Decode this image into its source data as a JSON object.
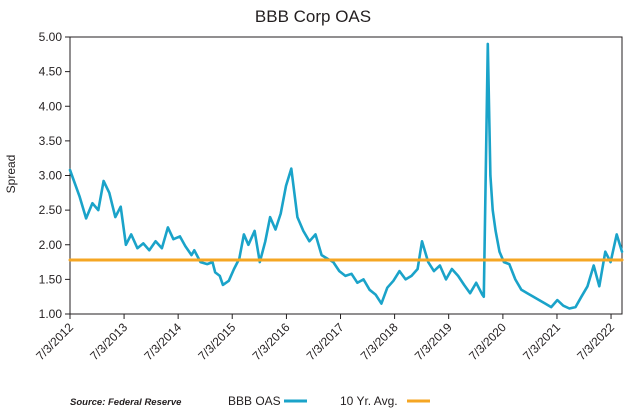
{
  "chart_data": {
    "type": "line",
    "title": "BBB Corp OAS",
    "ylabel": "Spread",
    "xlabel": "",
    "ylim": [
      1.0,
      5.0
    ],
    "yticks": [
      "1.00",
      "1.50",
      "2.00",
      "2.50",
      "3.00",
      "3.50",
      "4.00",
      "4.50",
      "5.00"
    ],
    "xticks": [
      "7/3/2012",
      "7/3/2013",
      "7/3/2014",
      "7/3/2015",
      "7/3/2016",
      "7/3/2017",
      "7/3/2018",
      "7/3/2019",
      "7/3/2020",
      "7/3/2021",
      "7/3/2022"
    ],
    "xlim": [
      "2012-07-03",
      "2022-09-15"
    ],
    "grid": false,
    "legend_position": "bottom",
    "source": "Source: Federal Reserve",
    "series": [
      {
        "name": "BBB OAS",
        "color": "#1aa3c9",
        "x": [
          "2012-07-03",
          "2012-09-05",
          "2012-10-20",
          "2012-12-01",
          "2013-01-10",
          "2013-02-15",
          "2013-03-25",
          "2013-05-05",
          "2013-06-10",
          "2013-07-15",
          "2013-08-20",
          "2013-10-01",
          "2013-11-10",
          "2013-12-20",
          "2014-02-01",
          "2014-03-15",
          "2014-04-25",
          "2014-06-01",
          "2014-07-15",
          "2014-08-20",
          "2014-10-01",
          "2014-10-20",
          "2014-12-01",
          "2015-01-15",
          "2015-02-20",
          "2015-03-10",
          "2015-04-10",
          "2015-05-01",
          "2015-06-10",
          "2015-07-15",
          "2015-08-20",
          "2015-09-20",
          "2015-10-20",
          "2015-12-01",
          "2016-01-05",
          "2016-02-11",
          "2016-03-15",
          "2016-04-20",
          "2016-05-25",
          "2016-06-30",
          "2016-08-05",
          "2016-09-15",
          "2016-10-25",
          "2016-12-05",
          "2017-01-15",
          "2017-02-25",
          "2017-04-05",
          "2017-05-15",
          "2017-06-25",
          "2017-08-05",
          "2017-09-15",
          "2017-10-25",
          "2017-12-05",
          "2018-01-15",
          "2018-02-25",
          "2018-04-05",
          "2018-05-15",
          "2018-06-25",
          "2018-08-05",
          "2018-09-15",
          "2018-10-25",
          "2018-12-05",
          "2019-01-04",
          "2019-02-15",
          "2019-03-25",
          "2019-05-05",
          "2019-06-15",
          "2019-07-25",
          "2019-09-05",
          "2019-10-15",
          "2019-11-25",
          "2020-01-05",
          "2020-02-15",
          "2020-02-25",
          "2020-03-23",
          "2020-04-10",
          "2020-04-25",
          "2020-05-15",
          "2020-06-10",
          "2020-07-10",
          "2020-08-15",
          "2020-09-25",
          "2020-11-05",
          "2020-12-15",
          "2021-01-25",
          "2021-03-05",
          "2021-04-15",
          "2021-05-25",
          "2021-07-05",
          "2021-08-15",
          "2021-09-25",
          "2021-11-05",
          "2021-12-15",
          "2022-01-25",
          "2022-03-08",
          "2022-04-15",
          "2022-05-25",
          "2022-06-30",
          "2022-08-10",
          "2022-09-15"
        ],
        "values": [
          3.08,
          2.7,
          2.38,
          2.6,
          2.5,
          2.92,
          2.75,
          2.4,
          2.55,
          2.0,
          2.15,
          1.95,
          2.02,
          1.92,
          2.05,
          1.95,
          2.25,
          2.08,
          2.12,
          1.98,
          1.85,
          1.92,
          1.75,
          1.72,
          1.75,
          1.6,
          1.55,
          1.42,
          1.48,
          1.65,
          1.8,
          2.15,
          2.0,
          2.2,
          1.75,
          2.05,
          2.4,
          2.22,
          2.45,
          2.85,
          3.1,
          2.4,
          2.2,
          2.05,
          2.15,
          1.85,
          1.8,
          1.75,
          1.62,
          1.55,
          1.58,
          1.45,
          1.5,
          1.35,
          1.28,
          1.15,
          1.38,
          1.48,
          1.62,
          1.5,
          1.55,
          1.65,
          2.05,
          1.75,
          1.62,
          1.7,
          1.5,
          1.65,
          1.55,
          1.42,
          1.3,
          1.45,
          1.28,
          1.25,
          4.9,
          3.0,
          2.5,
          2.2,
          1.9,
          1.75,
          1.72,
          1.5,
          1.35,
          1.3,
          1.25,
          1.2,
          1.15,
          1.1,
          1.2,
          1.12,
          1.08,
          1.1,
          1.25,
          1.4,
          1.7,
          1.4,
          1.9,
          1.75,
          2.15,
          1.9
        ]
      },
      {
        "name": "10 Yr. Avg.",
        "color": "#f5a623",
        "x": [
          "2012-07-03",
          "2022-09-15"
        ],
        "values": [
          1.78,
          1.78
        ]
      }
    ]
  }
}
